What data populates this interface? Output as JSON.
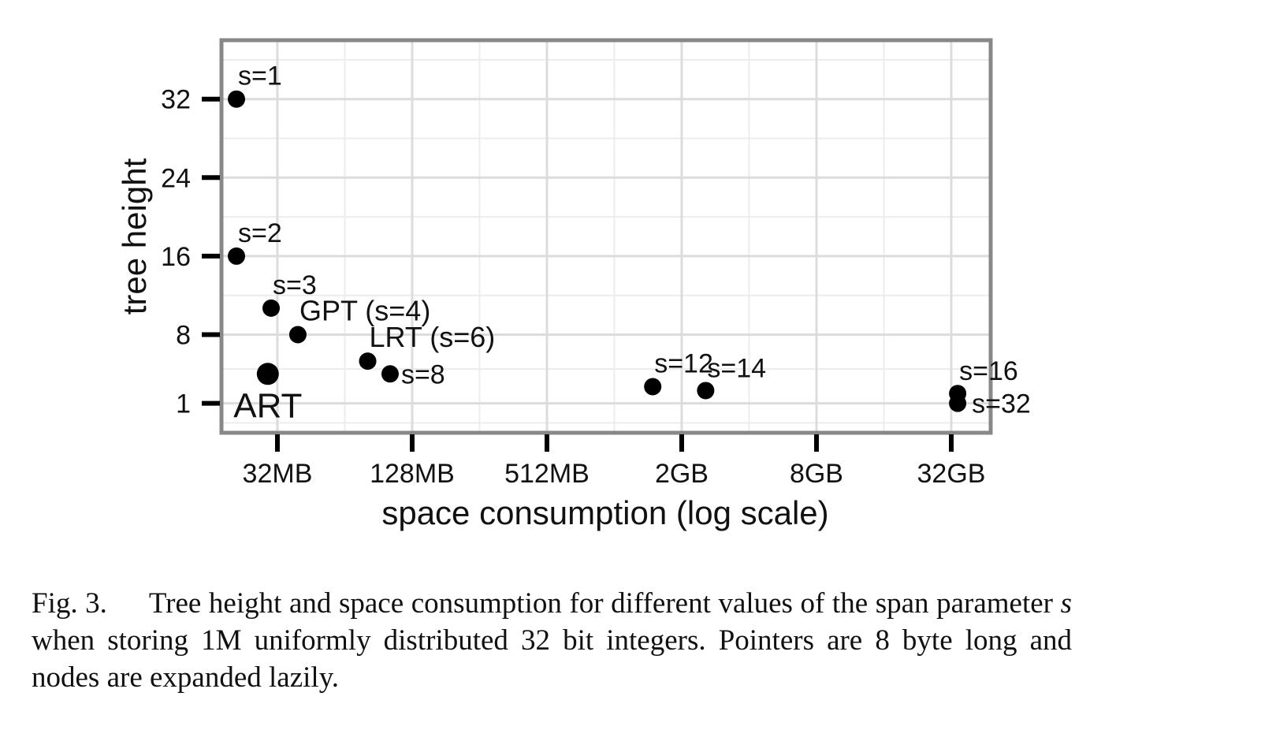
{
  "chart_data": {
    "type": "scatter",
    "xlabel": "space consumption (log scale)",
    "ylabel": "tree height",
    "x_scale": "log2",
    "x_unit": "MB",
    "xlim": [
      18,
      49152
    ],
    "ylim": [
      -2,
      38
    ],
    "grid": true,
    "x_ticks": [
      {
        "value": 32,
        "label": "32MB"
      },
      {
        "value": 128,
        "label": "128MB"
      },
      {
        "value": 512,
        "label": "512MB"
      },
      {
        "value": 2048,
        "label": "2GB"
      },
      {
        "value": 8192,
        "label": "8GB"
      },
      {
        "value": 32768,
        "label": "32GB"
      }
    ],
    "y_ticks": [
      {
        "value": 1,
        "label": "1"
      },
      {
        "value": 8,
        "label": "8"
      },
      {
        "value": 16,
        "label": "16"
      },
      {
        "value": 24,
        "label": "24"
      },
      {
        "value": 32,
        "label": "32"
      }
    ],
    "points": [
      {
        "label": "s=1",
        "x": 21,
        "y": 32
      },
      {
        "label": "s=2",
        "x": 21,
        "y": 16
      },
      {
        "label": "s=3",
        "x": 30,
        "y": 10.7
      },
      {
        "label": "GPT (s=4)",
        "x": 39.5,
        "y": 8
      },
      {
        "label": "LRT (s=6)",
        "x": 81,
        "y": 5.3
      },
      {
        "label": "s=8",
        "x": 102,
        "y": 4
      },
      {
        "label": "s=12",
        "x": 1520,
        "y": 2.7
      },
      {
        "label": "s=14",
        "x": 2620,
        "y": 2.3
      },
      {
        "label": "s=16",
        "x": 35000,
        "y": 2
      },
      {
        "label": "s=32",
        "x": 35000,
        "y": 1
      },
      {
        "label": "ART",
        "x": 29,
        "y": 4
      }
    ]
  },
  "caption": {
    "number": "Fig. 3.",
    "text_before": "Tree height and space consumption for different values of the span parameter",
    "symbol": "s",
    "text_after": "when storing 1M uniformly distributed 32 bit integers. Pointers are 8 byte long and nodes are expanded lazily."
  }
}
